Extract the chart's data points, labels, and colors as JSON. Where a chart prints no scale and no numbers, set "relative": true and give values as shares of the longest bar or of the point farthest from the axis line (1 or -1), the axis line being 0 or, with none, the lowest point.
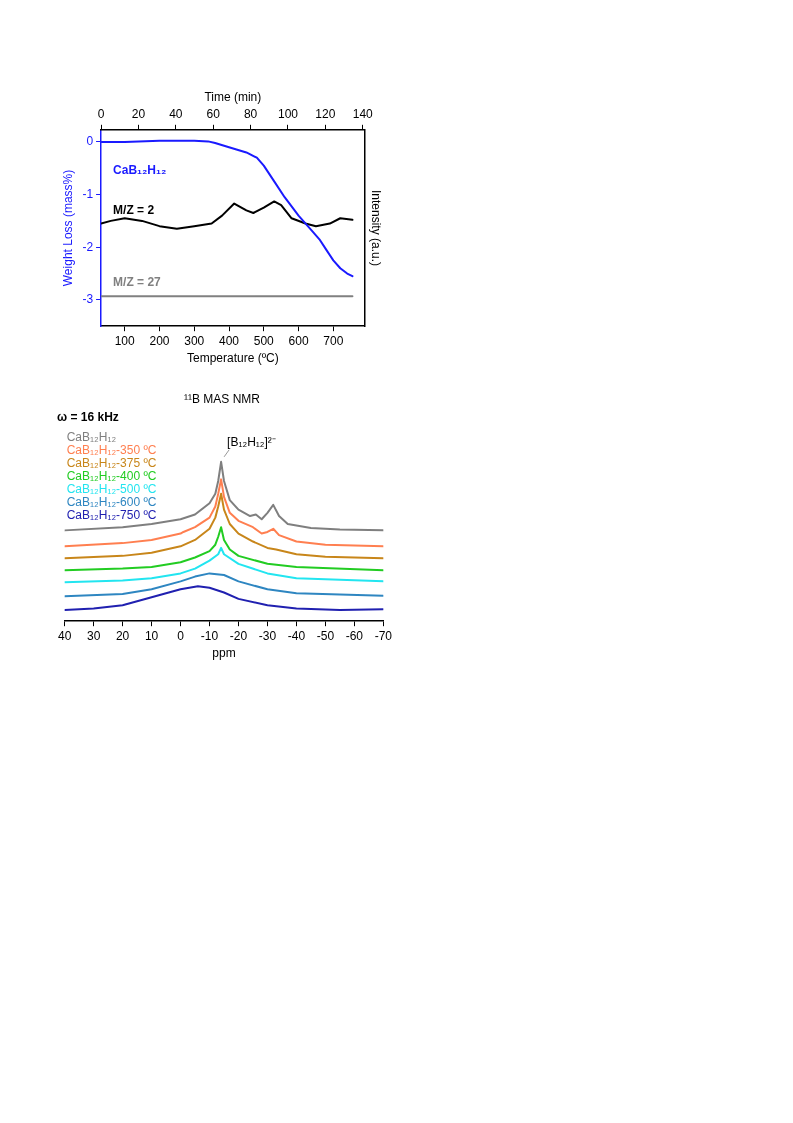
{
  "chart_data": [
    {
      "type": "line",
      "xlabel": "Temperature (ºC)",
      "x2label": "Time (min)",
      "ylabel": "Weight Loss (mass%)",
      "y2label": "Intensity (a.u.)",
      "xlim": [
        32,
        790
      ],
      "xticks": [
        100,
        200,
        300,
        400,
        500,
        600,
        700
      ],
      "x2lim": [
        0,
        141
      ],
      "x2ticks": [
        0,
        20,
        40,
        60,
        80,
        100,
        120,
        140
      ],
      "ylim": [
        -3.5,
        0.23
      ],
      "yticks": [
        -3,
        -2,
        -1,
        0
      ],
      "legend": false,
      "grid": false,
      "series": [
        {
          "name": "CaB₁₂H₁₂",
          "color": "#1a1aff",
          "x": [
            32,
            100,
            200,
            300,
            340,
            360,
            400,
            450,
            480,
            500,
            530,
            560,
            600,
            640,
            660,
            680,
            700,
            720,
            740,
            755
          ],
          "values": [
            0,
            0,
            0.02,
            0.02,
            0.01,
            -0.02,
            -0.1,
            -0.2,
            -0.3,
            -0.45,
            -0.75,
            -1.05,
            -1.4,
            -1.7,
            -1.85,
            -2.05,
            -2.25,
            -2.4,
            -2.5,
            -2.55
          ]
        },
        {
          "name": "M/Z = 2",
          "color": "#000000",
          "x": [
            32,
            60,
            100,
            150,
            200,
            250,
            300,
            350,
            380,
            415,
            450,
            470,
            500,
            530,
            550,
            580,
            620,
            650,
            690,
            720,
            755
          ],
          "values": [
            -1.55,
            -1.5,
            -1.45,
            -1.5,
            -1.6,
            -1.65,
            -1.6,
            -1.55,
            -1.4,
            -1.17,
            -1.3,
            -1.35,
            -1.25,
            -1.13,
            -1.2,
            -1.45,
            -1.55,
            -1.6,
            -1.55,
            -1.45,
            -1.48
          ]
        },
        {
          "name": "M/Z = 27",
          "color": "#808080",
          "x": [
            32,
            755
          ],
          "values": [
            -2.93,
            -2.93
          ]
        }
      ]
    },
    {
      "type": "line",
      "title": "¹¹B MAS NMR",
      "subtitle": "ω = 16 kHz",
      "xlabel": "ppm",
      "xlim": [
        40,
        -70
      ],
      "xticks": [
        40,
        30,
        20,
        10,
        0,
        -10,
        -20,
        -30,
        -40,
        -50,
        -60,
        -70
      ],
      "relative": true,
      "legend": "top left",
      "grid": false,
      "annotations": [
        {
          "text": "[B₁₂H₁₂]²⁻",
          "x": -14,
          "y": 1.0
        }
      ],
      "series": [
        {
          "name": "CaB₁₂H₁₂",
          "color": "#7f7f7f",
          "x": [
            40,
            20,
            10,
            0,
            -5,
            -10,
            -12,
            -13,
            -14,
            -15,
            -17,
            -20,
            -24,
            -26,
            -28,
            -30,
            -32,
            -34,
            -37,
            -45,
            -55,
            -70
          ],
          "values": [
            0.57,
            0.59,
            0.61,
            0.64,
            0.67,
            0.74,
            0.8,
            0.88,
            1.0,
            0.88,
            0.76,
            0.7,
            0.66,
            0.67,
            0.64,
            0.68,
            0.73,
            0.66,
            0.61,
            0.585,
            0.575,
            0.57
          ]
        },
        {
          "name": "CaB₁₂H₁₂-350 ºC",
          "color": "#ff7f50",
          "x": [
            40,
            20,
            10,
            0,
            -1,
            -5,
            -10,
            -12,
            -13,
            -14,
            -15,
            -17,
            -20,
            -25,
            -28,
            -30,
            -32,
            -34,
            -40,
            -50,
            -70
          ],
          "values": [
            0.47,
            0.49,
            0.51,
            0.55,
            0.56,
            0.59,
            0.65,
            0.72,
            0.8,
            0.89,
            0.78,
            0.68,
            0.63,
            0.59,
            0.55,
            0.56,
            0.58,
            0.54,
            0.5,
            0.48,
            0.47
          ]
        },
        {
          "name": "CaB₁₂H₁₂-375 ºC",
          "color": "#c8861a",
          "x": [
            40,
            20,
            10,
            0,
            -5,
            -10,
            -12,
            -13,
            -14,
            -15,
            -17,
            -20,
            -25,
            -30,
            -33,
            -40,
            -50,
            -70
          ],
          "values": [
            0.395,
            0.41,
            0.43,
            0.47,
            0.51,
            0.58,
            0.65,
            0.72,
            0.8,
            0.7,
            0.61,
            0.55,
            0.5,
            0.46,
            0.45,
            0.42,
            0.405,
            0.395
          ]
        },
        {
          "name": "CaB₁₂H₁₂-400 ºC",
          "color": "#22cc22",
          "x": [
            40,
            20,
            10,
            0,
            -5,
            -10,
            -12,
            -13,
            -14,
            -15,
            -17,
            -20,
            -30,
            -40,
            -70
          ],
          "values": [
            0.32,
            0.33,
            0.34,
            0.37,
            0.4,
            0.44,
            0.48,
            0.53,
            0.59,
            0.51,
            0.45,
            0.41,
            0.36,
            0.34,
            0.32
          ]
        },
        {
          "name": "CaB₁₂H₁₂-500 ºC",
          "color": "#22e5f0",
          "x": [
            40,
            20,
            10,
            0,
            -5,
            -10,
            -13,
            -14,
            -15,
            -20,
            -30,
            -40,
            -70
          ],
          "values": [
            0.245,
            0.255,
            0.27,
            0.3,
            0.33,
            0.38,
            0.42,
            0.46,
            0.42,
            0.36,
            0.3,
            0.27,
            0.25
          ]
        },
        {
          "name": "CaB₁₂H₁₂-600 ºC",
          "color": "#2e86c1",
          "x": [
            40,
            20,
            10,
            0,
            -5,
            -10,
            -15,
            -20,
            -30,
            -40,
            -70
          ],
          "values": [
            0.156,
            0.17,
            0.2,
            0.25,
            0.28,
            0.3,
            0.29,
            0.25,
            0.2,
            0.175,
            0.16
          ]
        },
        {
          "name": "CaB₁₂H₁₂-750 ºC",
          "color": "#2020b0",
          "x": [
            40,
            30,
            20,
            10,
            0,
            -6,
            -10,
            -15,
            -20,
            -30,
            -40,
            -55,
            -70
          ],
          "values": [
            0.07,
            0.08,
            0.1,
            0.15,
            0.2,
            0.22,
            0.21,
            0.18,
            0.14,
            0.1,
            0.08,
            0.07,
            0.075
          ]
        }
      ]
    }
  ]
}
